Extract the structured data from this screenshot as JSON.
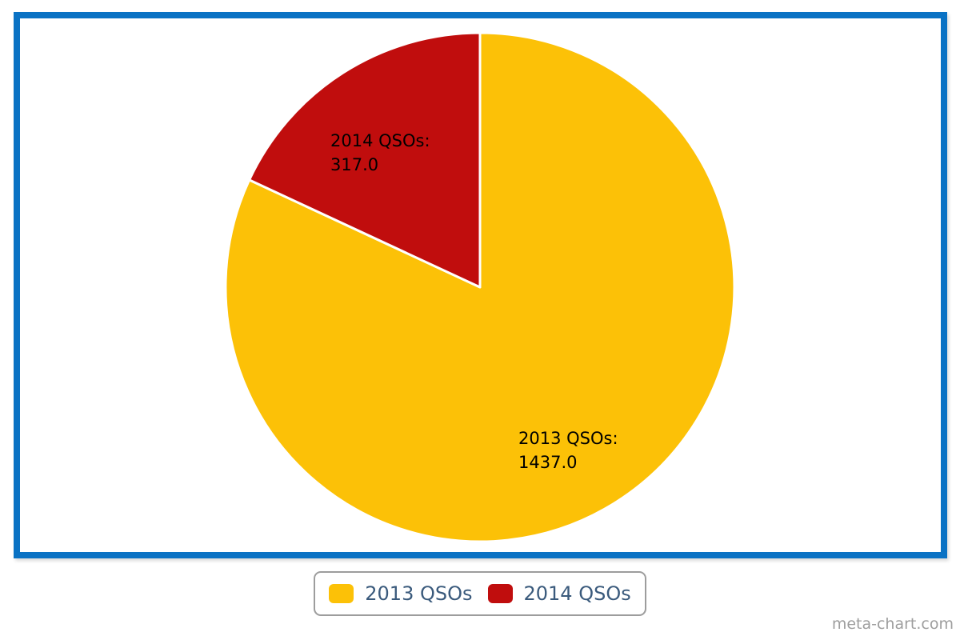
{
  "watermark": "meta-chart.com",
  "colors": {
    "frame": "#0a72c4",
    "legend_text": "#3a5a7c",
    "legend_border": "#9d9d9d",
    "label_text": "#000000",
    "watermark_text": "#9e9e9e",
    "slice_separator": "#ffffff"
  },
  "chart_data": {
    "type": "pie",
    "title": "",
    "legend_position": "bottom",
    "start_angle_deg": 0,
    "direction": "clockwise",
    "slices": [
      {
        "id": "2013-qsos",
        "name": "2013 QSOs",
        "value": 1437,
        "value_label": "1437.0",
        "label_title": "2013 QSOs:",
        "color": "#fcc107"
      },
      {
        "id": "2014-qsos",
        "name": "2014 QSOs",
        "value": 317,
        "value_label": "317.0",
        "label_title": "2014 QSOs:",
        "color": "#c00d0d"
      }
    ]
  }
}
